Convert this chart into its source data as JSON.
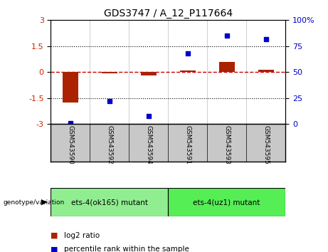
{
  "title": "GDS3747 / A_12_P117664",
  "samples": [
    "GSM543590",
    "GSM543592",
    "GSM543594",
    "GSM543591",
    "GSM543593",
    "GSM543595"
  ],
  "log2_ratio": [
    -1.75,
    -0.08,
    -0.2,
    0.1,
    0.6,
    0.12
  ],
  "percentile_rank": [
    1,
    22,
    8,
    68,
    85,
    82
  ],
  "groups": [
    {
      "label": "ets-4(ok165) mutant",
      "color": "#90EE90",
      "start": 0,
      "end": 2
    },
    {
      "label": "ets-4(uz1) mutant",
      "color": "#55EE55",
      "start": 3,
      "end": 5
    }
  ],
  "ylim_left": [
    -3,
    3
  ],
  "ylim_right": [
    0,
    100
  ],
  "yticks_left": [
    -3,
    -1.5,
    0,
    1.5,
    3
  ],
  "yticks_right": [
    0,
    25,
    50,
    75,
    100
  ],
  "bar_color": "#AA2200",
  "dot_color": "#0000CC",
  "zero_line_color": "#CC0000",
  "bg_color": "#FFFFFF",
  "sample_bg_color": "#C8C8C8",
  "legend_items": [
    "log2 ratio",
    "percentile rank within the sample"
  ]
}
